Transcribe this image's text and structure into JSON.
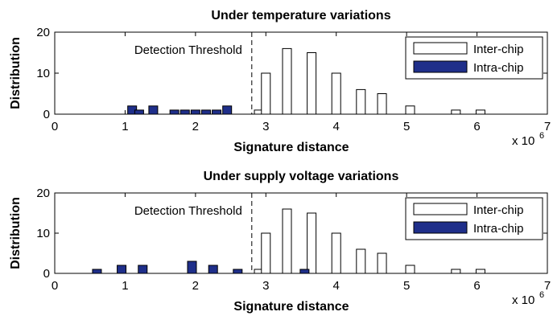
{
  "chart_data": [
    {
      "type": "bar",
      "title": "Under temperature variations",
      "xlabel": "Signature distance",
      "ylabel": "Distribution",
      "xlim": [
        0,
        7000000
      ],
      "ylim": [
        0,
        20
      ],
      "x_ticks": [
        0,
        1,
        2,
        3,
        4,
        5,
        6,
        7
      ],
      "y_ticks": [
        0,
        10,
        20
      ],
      "x_multiplier_base": "x 10",
      "x_multiplier_exponent": "6",
      "threshold": {
        "label": "Detection Threshold",
        "x": 2800000
      },
      "legend": {
        "position": "top-right",
        "entries": [
          "Inter-chip",
          "Intra-chip"
        ]
      },
      "series": [
        {
          "name": "Inter-chip",
          "color": "#ffffff",
          "x": [
            2900000,
            3000000,
            3300000,
            3650000,
            4000000,
            4350000,
            4650000,
            5050000,
            5700000,
            6050000
          ],
          "values": [
            1,
            10,
            16,
            15,
            10,
            6,
            5,
            2,
            1,
            1
          ]
        },
        {
          "name": "Intra-chip",
          "color": "#1f2f8a",
          "x": [
            1100000,
            1200000,
            1400000,
            1700000,
            1850000,
            2000000,
            2150000,
            2300000,
            2450000
          ],
          "values": [
            2,
            1,
            2,
            1,
            1,
            1,
            1,
            1,
            2
          ]
        }
      ]
    },
    {
      "type": "bar",
      "title": "Under supply voltage variations",
      "xlabel": "Signature distance",
      "ylabel": "Distribution",
      "xlim": [
        0,
        7000000
      ],
      "ylim": [
        0,
        20
      ],
      "x_ticks": [
        0,
        1,
        2,
        3,
        4,
        5,
        6,
        7
      ],
      "y_ticks": [
        0,
        10,
        20
      ],
      "x_multiplier_base": "x 10",
      "x_multiplier_exponent": "6",
      "threshold": {
        "label": "Detection Threshold",
        "x": 2800000
      },
      "legend": {
        "position": "top-right",
        "entries": [
          "Inter-chip",
          "Intra-chip"
        ]
      },
      "series": [
        {
          "name": "Inter-chip",
          "color": "#ffffff",
          "x": [
            2900000,
            3000000,
            3300000,
            3650000,
            4000000,
            4350000,
            4650000,
            5050000,
            5700000,
            6050000
          ],
          "values": [
            1,
            10,
            16,
            15,
            10,
            6,
            5,
            2,
            1,
            1
          ]
        },
        {
          "name": "Intra-chip",
          "color": "#1f2f8a",
          "x": [
            600000,
            950000,
            1250000,
            1950000,
            2250000,
            2600000,
            3550000
          ],
          "values": [
            1,
            2,
            2,
            3,
            2,
            1,
            1
          ]
        }
      ]
    }
  ]
}
